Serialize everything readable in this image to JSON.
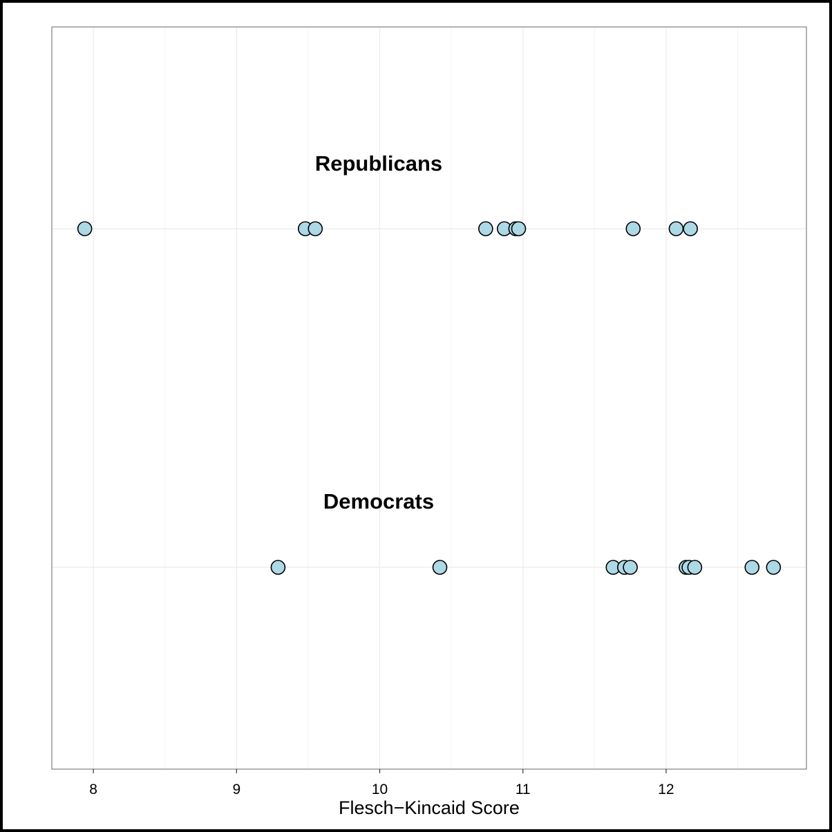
{
  "chart_data": {
    "type": "scatter",
    "title": "",
    "xlabel": "Flesch−Kincaid Score",
    "ylabel": "",
    "xlim": [
      7.71,
      12.98
    ],
    "xticks": [
      8,
      9,
      10,
      11,
      12
    ],
    "grid": true,
    "colors": {
      "point_fill": "#add8e6",
      "point_stroke": "#000000",
      "grid_major": "#ebebeb",
      "grid_minor": "#f3f3f3",
      "panel_border": "#7f7f7f"
    },
    "series": [
      {
        "name": "Republicans",
        "values": [
          7.94,
          9.48,
          9.55,
          10.74,
          10.87,
          10.95,
          10.97,
          11.77,
          12.07,
          12.17
        ]
      },
      {
        "name": "Democrats",
        "values": [
          9.29,
          10.42,
          11.63,
          11.71,
          11.75,
          12.14,
          12.16,
          12.2,
          12.6,
          12.75
        ]
      }
    ]
  }
}
